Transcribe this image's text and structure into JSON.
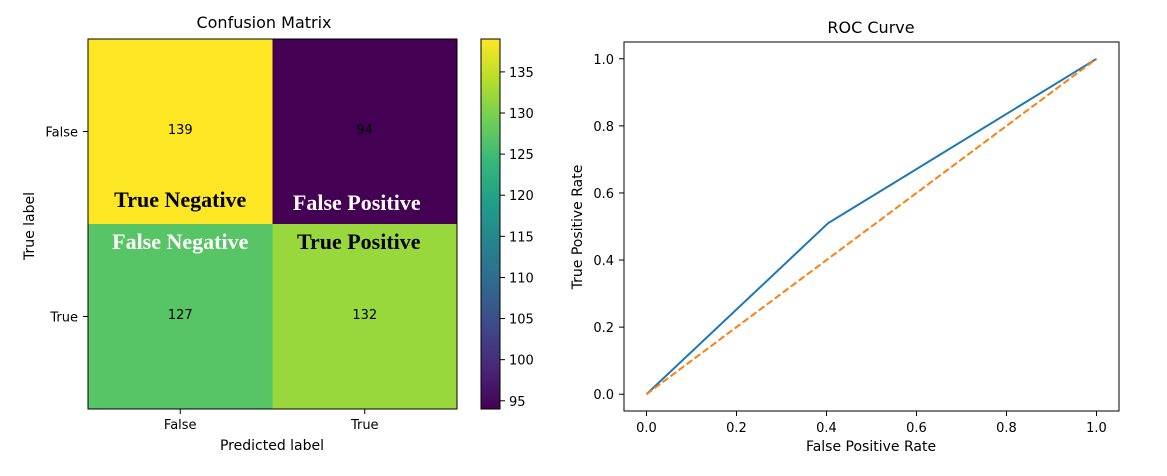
{
  "chart_data": [
    {
      "type": "heatmap",
      "title": "Confusion Matrix",
      "xlabel": "Predicted label",
      "ylabel": "True label",
      "x_categories": [
        "False",
        "True"
      ],
      "y_categories": [
        "False",
        "True"
      ],
      "values": [
        [
          139,
          94
        ],
        [
          127,
          132
        ]
      ],
      "cell_text_colors": [
        [
          "#fde725",
          "#fde725"
        ],
        [
          "#000000",
          "#000000"
        ]
      ],
      "annotations": [
        {
          "text": "True Negative",
          "row": 0,
          "col": 0,
          "color": "#000000"
        },
        {
          "text": "False Positive",
          "row": 0,
          "col": 1,
          "color": "#ffffff"
        },
        {
          "text": "False Negative",
          "row": 1,
          "col": 0,
          "color": "#ffffff"
        },
        {
          "text": "True Positive",
          "row": 1,
          "col": 1,
          "color": "#000000"
        }
      ],
      "colormap": "viridis",
      "colorbar": {
        "vmin": 94,
        "vmax": 139,
        "ticks": [
          95,
          100,
          105,
          110,
          115,
          120,
          125,
          130,
          135
        ]
      }
    },
    {
      "type": "line",
      "title": "ROC Curve",
      "xlabel": "False Positive Rate",
      "ylabel": "True Positive Rate",
      "xlim": [
        -0.05,
        1.05
      ],
      "ylim": [
        -0.05,
        1.05
      ],
      "xticks": [
        "0.0",
        "0.2",
        "0.4",
        "0.6",
        "0.8",
        "1.0"
      ],
      "yticks": [
        "0.0",
        "0.2",
        "0.4",
        "0.6",
        "0.8",
        "1.0"
      ],
      "series": [
        {
          "x": [
            0.0,
            0.4035,
            1.0
          ],
          "y": [
            0.0,
            0.5097,
            1.0
          ],
          "color": "#1f77b4",
          "style": "solid"
        },
        {
          "x": [
            0.0,
            1.0
          ],
          "y": [
            0.0,
            1.0
          ],
          "color": "#ff7f0e",
          "style": "dashed"
        }
      ]
    }
  ]
}
